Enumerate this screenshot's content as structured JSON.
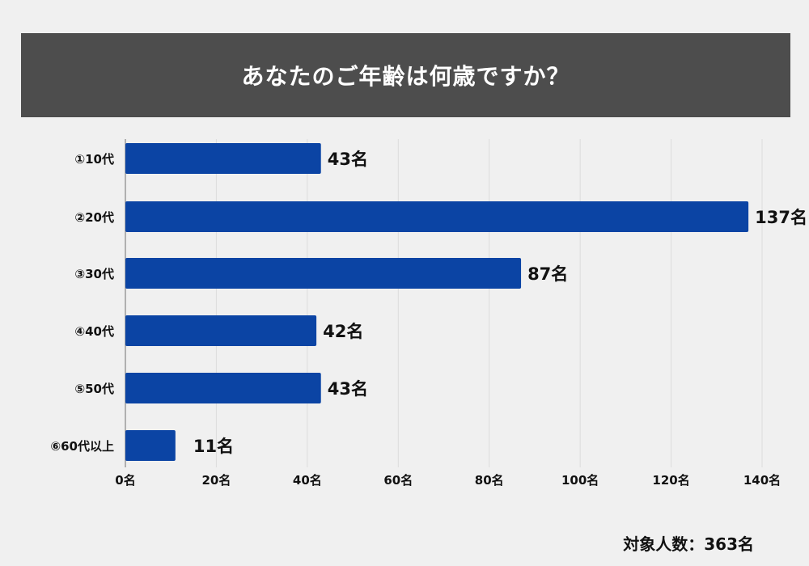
{
  "header": {
    "title": "あなたのご年齢は何歳ですか？"
  },
  "footer": {
    "respondents": "対象人数：363名"
  },
  "colors": {
    "bar": "#0b44a4",
    "header_bg": "#4d4d4d",
    "grid": "#dcdcdc",
    "text": "#111111"
  },
  "chart_data": {
    "type": "bar",
    "orientation": "horizontal",
    "title": "あなたのご年齢は何歳ですか？",
    "categories": [
      "①10代",
      "②20代",
      "③30代",
      "④40代",
      "⑤50代",
      "⑥60代以上"
    ],
    "values": [
      43,
      137,
      87,
      42,
      43,
      11
    ],
    "value_labels": [
      "43名",
      "137名",
      "87名",
      "42名",
      "43名",
      "11名"
    ],
    "xlim": [
      0,
      140
    ],
    "x_ticks": [
      0,
      20,
      40,
      60,
      80,
      100,
      120,
      140
    ],
    "x_tick_labels": [
      "0名",
      "20名",
      "40名",
      "60名",
      "80名",
      "100名",
      "120名",
      "140名"
    ],
    "grid": true,
    "xlabel": "",
    "ylabel": ""
  }
}
